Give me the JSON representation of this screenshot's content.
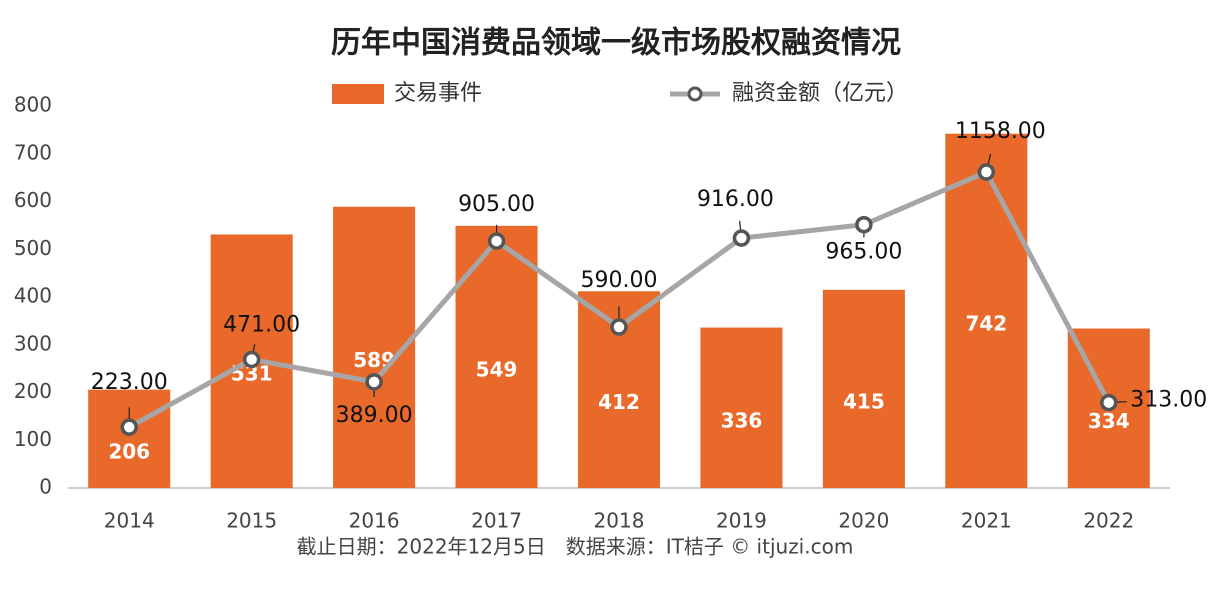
{
  "chart_data": {
    "type": "bar-line",
    "title": "历年中国消费品领域一级市场股权融资情况",
    "footnote": "截止日期：2022年12月5日　数据来源：IT桔子 © itjuzi.com",
    "categories": [
      "2014",
      "2015",
      "2016",
      "2017",
      "2018",
      "2019",
      "2020",
      "2021",
      "2022"
    ],
    "series": [
      {
        "name": "交易事件",
        "type": "bar",
        "color": "#e8692a",
        "values": [
          206,
          531,
          589,
          549,
          412,
          336,
          415,
          742,
          334
        ]
      },
      {
        "name": "融资金额（亿元）",
        "type": "line",
        "axis": "y2",
        "color": "#a6a6a6",
        "values": [
          223,
          471,
          389,
          905,
          590,
          916,
          965,
          1158,
          313
        ],
        "value_labels": [
          "223.00",
          "471.00",
          "389.00",
          "905.00",
          "590.00",
          "916.00",
          "965.00",
          "1158.00",
          "313.00"
        ]
      }
    ],
    "ylim": [
      0,
      800
    ],
    "yticks": [
      0,
      100,
      200,
      300,
      400,
      500,
      600,
      700,
      800
    ],
    "y2lim": [
      0,
      1400
    ],
    "grid": false
  }
}
